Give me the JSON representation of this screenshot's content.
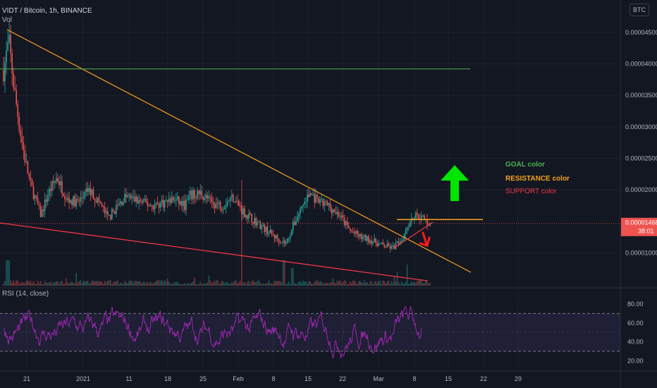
{
  "header": {
    "symbol_line": "VIDT / Bitcoin, 1h, BINANCE",
    "vol_label": "Vol",
    "rsi_label": "RSI (14, close)",
    "currency_badge": "BTC"
  },
  "price_axis": {
    "ticks": [
      "0.00004500",
      "0.00004000",
      "0.00003500",
      "0.00003000",
      "0.00002500",
      "0.00002000",
      "0.00001000"
    ],
    "current_price": "0.00001468",
    "countdown": "38:01"
  },
  "rsi_axis": {
    "ticks": [
      "80.00",
      "60.00",
      "40.00",
      "20.00"
    ]
  },
  "time_axis": {
    "ticks": [
      "21",
      "2021",
      "11",
      "18",
      "25",
      "Feb",
      "8",
      "15",
      "22",
      "Mar",
      "8",
      "15",
      "22",
      "29"
    ]
  },
  "annotations": {
    "goal": "GOAL color",
    "resistance": "RESISTANCE color",
    "support": "SUPPORT color"
  },
  "colors": {
    "background": "#131722",
    "up": "#26a69a",
    "down": "#ef5350",
    "goal": "#4caf50",
    "resistance": "#f7a21b",
    "support": "#f23645",
    "rsi": "#9c27b0",
    "arrow_up": "#00e600",
    "arrow_down": "#ff1a1a"
  },
  "chart_data": [
    {
      "type": "candlestick",
      "pair": "VIDT / Bitcoin",
      "interval": "1h",
      "exchange": "BINANCE",
      "price_path": [
        [
          0,
          3.9
        ],
        [
          0.5,
          4.35
        ],
        [
          1,
          3.6
        ],
        [
          1.5,
          3.0
        ],
        [
          2,
          2.5
        ],
        [
          2.5,
          2.1
        ],
        [
          3,
          1.85
        ],
        [
          3.5,
          1.6
        ],
        [
          4.2,
          1.95
        ],
        [
          5,
          2.2
        ],
        [
          6,
          1.85
        ],
        [
          7,
          1.8
        ],
        [
          8,
          2.0
        ],
        [
          9,
          1.8
        ],
        [
          9.8,
          1.55
        ],
        [
          10.5,
          1.7
        ],
        [
          11.5,
          1.9
        ],
        [
          13,
          1.8
        ],
        [
          14,
          1.75
        ],
        [
          15,
          1.8
        ],
        [
          16,
          1.85
        ],
        [
          17,
          1.75
        ],
        [
          17.5,
          1.9
        ],
        [
          18.5,
          1.95
        ],
        [
          19.5,
          1.8
        ],
        [
          20.5,
          1.75
        ],
        [
          21.5,
          1.9
        ],
        [
          22.5,
          1.65
        ],
        [
          24,
          1.45
        ],
        [
          25.5,
          1.25
        ],
        [
          26.5,
          1.15
        ],
        [
          27.2,
          1.45
        ],
        [
          28,
          1.75
        ],
        [
          28.8,
          1.95
        ],
        [
          29.5,
          1.8
        ],
        [
          30.5,
          1.75
        ],
        [
          31.5,
          1.6
        ],
        [
          32.5,
          1.35
        ],
        [
          33.5,
          1.25
        ],
        [
          34.5,
          1.2
        ],
        [
          35.5,
          1.12
        ],
        [
          36.5,
          1.08
        ],
        [
          37.4,
          1.22
        ],
        [
          37.9,
          1.45
        ],
        [
          38.4,
          1.58
        ],
        [
          39,
          1.6
        ],
        [
          39.6,
          1.5
        ],
        [
          40,
          1.47
        ]
      ],
      "current_price": 1.468e-05,
      "goal_line": 3.92e-05,
      "resistance_level": 1.53e-05,
      "y_unit": 1e-05,
      "ylim": [
        4.8e-06,
        4.79e-05
      ]
    },
    {
      "type": "line",
      "series": [
        {
          "name": "RSI (14, close)"
        }
      ],
      "overbought": 70,
      "oversold": 30,
      "ylim": [
        12,
        92
      ]
    }
  ]
}
